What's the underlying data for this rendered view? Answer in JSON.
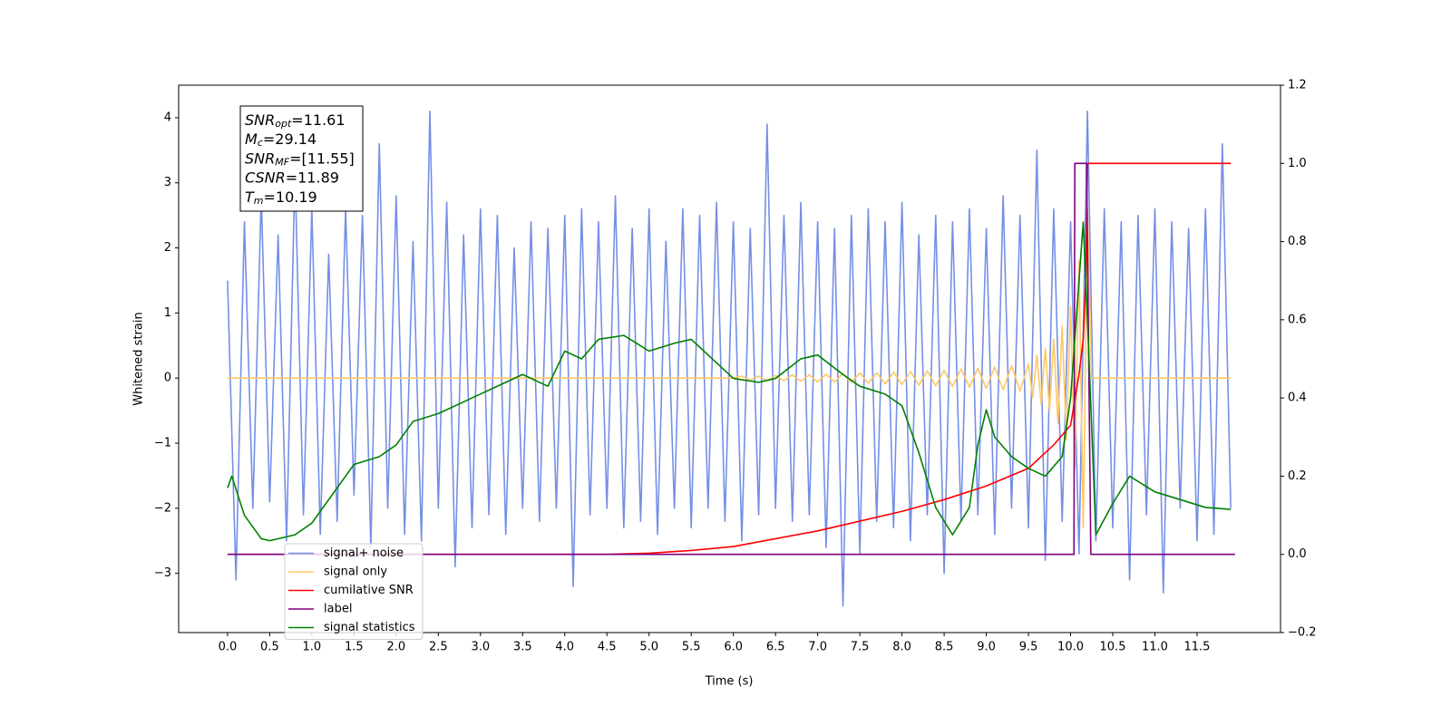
{
  "chart_data": {
    "type": "line",
    "xlabel": "Time (s)",
    "ylabel": "Whitened strain",
    "xlim": [
      -0.58,
      12.49
    ],
    "ylim": [
      -3.91,
      4.5
    ],
    "y2lim": [
      -0.2,
      1.2
    ],
    "xticks": [
      {
        "value": 0,
        "label": "0.0"
      },
      0.5,
      {
        "value": 1,
        "label": "1.0"
      },
      1.5,
      {
        "value": 2,
        "label": "2.0"
      },
      2.5,
      {
        "value": 3,
        "label": "3.0"
      },
      3.5,
      {
        "value": 4,
        "label": "4.0"
      },
      4.5,
      {
        "value": 5,
        "label": "5.0"
      },
      5.5,
      {
        "value": 6,
        "label": "6.0"
      },
      6.5,
      {
        "value": 7,
        "label": "7.0"
      },
      7.5,
      {
        "value": 8,
        "label": "8.0"
      },
      8.5,
      {
        "value": 9,
        "label": "9.0"
      },
      9.5,
      {
        "value": 10,
        "label": "10.0"
      },
      10.5,
      {
        "value": 11,
        "label": "11.0"
      },
      11.5
    ],
    "yticks": [
      {
        "value": -3,
        "label": "−3"
      },
      {
        "value": -2,
        "label": "−2"
      },
      {
        "value": -1,
        "label": "−1"
      },
      0,
      1,
      2,
      3,
      4
    ],
    "y2ticks": [
      {
        "value": -0.2,
        "label": "−0.2"
      },
      {
        "value": 0,
        "label": "0.0"
      },
      0.2,
      0.4,
      0.6,
      0.8,
      {
        "value": 1,
        "label": "1.0"
      },
      1.2
    ],
    "annotation_lines": [
      {
        "main": "SNR",
        "sub": "opt",
        "rest": "=11.61"
      },
      {
        "main": "M",
        "sub": "c",
        "rest": "=29.14"
      },
      {
        "main": "SNR",
        "sub": "MF",
        "rest": "=[11.55]"
      },
      {
        "main": "CSNR",
        "rest": "=11.89"
      },
      {
        "main": "T",
        "sub": "m",
        "rest": "=10.19"
      }
    ],
    "series": [
      {
        "name": "signal+ noise",
        "color": "#758fe6",
        "x": [
          0.0,
          0.1,
          0.2,
          0.3,
          0.4,
          0.5,
          0.6,
          0.7,
          0.8,
          0.9,
          1.0,
          1.1,
          1.2,
          1.3,
          1.4,
          1.5,
          1.6,
          1.7,
          1.8,
          1.9,
          2.0,
          2.1,
          2.2,
          2.3,
          2.4,
          2.5,
          2.6,
          2.7,
          2.8,
          2.9,
          3.0,
          3.1,
          3.2,
          3.3,
          3.4,
          3.5,
          3.6,
          3.7,
          3.8,
          3.9,
          4.0,
          4.1,
          4.2,
          4.3,
          4.4,
          4.5,
          4.6,
          4.7,
          4.8,
          4.9,
          5.0,
          5.1,
          5.2,
          5.3,
          5.4,
          5.5,
          5.6,
          5.7,
          5.8,
          5.9,
          6.0,
          6.1,
          6.2,
          6.3,
          6.4,
          6.5,
          6.6,
          6.7,
          6.8,
          6.9,
          7.0,
          7.1,
          7.2,
          7.3,
          7.4,
          7.5,
          7.6,
          7.7,
          7.8,
          7.9,
          8.0,
          8.1,
          8.2,
          8.3,
          8.4,
          8.5,
          8.6,
          8.7,
          8.8,
          8.9,
          9.0,
          9.1,
          9.2,
          9.3,
          9.4,
          9.5,
          9.6,
          9.7,
          9.8,
          9.9,
          10.0,
          10.1,
          10.2,
          10.3,
          10.4,
          10.5,
          10.6,
          10.7,
          10.8,
          10.9,
          11.0,
          11.1,
          11.2,
          11.3,
          11.4,
          11.5,
          11.6,
          11.7,
          11.8,
          11.9
        ],
        "values": [
          1.5,
          -3.1,
          2.4,
          -2.0,
          2.8,
          -1.9,
          2.2,
          -2.5,
          3.2,
          -2.1,
          2.6,
          -2.4,
          1.9,
          -2.2,
          2.6,
          -1.8,
          2.5,
          -2.6,
          3.6,
          -2.0,
          2.8,
          -2.4,
          2.1,
          -2.5,
          4.1,
          -2.0,
          2.7,
          -2.9,
          2.2,
          -2.3,
          2.6,
          -2.1,
          2.5,
          -2.4,
          2.0,
          -2.0,
          2.4,
          -2.2,
          2.3,
          -2.0,
          2.5,
          -3.2,
          2.6,
          -2.1,
          2.4,
          -2.0,
          2.8,
          -2.3,
          2.3,
          -2.2,
          2.6,
          -2.4,
          2.1,
          -2.0,
          2.6,
          -2.3,
          2.5,
          -2.0,
          2.7,
          -2.2,
          2.4,
          -2.5,
          2.3,
          -2.1,
          3.9,
          -2.0,
          2.5,
          -2.2,
          2.7,
          -2.1,
          2.4,
          -2.6,
          2.3,
          -3.5,
          2.5,
          -2.7,
          2.6,
          -2.2,
          2.4,
          -2.3,
          2.7,
          -2.5,
          2.2,
          -2.1,
          2.5,
          -3.0,
          2.4,
          -2.2,
          2.6,
          -2.1,
          2.3,
          -2.4,
          2.8,
          -2.0,
          2.5,
          -2.3,
          3.5,
          -2.8,
          2.6,
          -2.2,
          2.4,
          -2.7,
          4.1,
          -2.5,
          2.6,
          -2.3,
          2.4,
          -3.1,
          2.5,
          -2.1,
          2.6,
          -3.3,
          2.4,
          -2.0,
          2.3,
          -2.5,
          2.6,
          -2.4,
          3.6,
          -2.0
        ]
      },
      {
        "name": "signal only",
        "color": "#ffc766",
        "x": [
          0,
          6.0,
          6.1,
          6.2,
          6.3,
          6.4,
          6.5,
          6.6,
          6.7,
          6.8,
          6.9,
          7.0,
          7.1,
          7.2,
          7.3,
          7.4,
          7.5,
          7.6,
          7.7,
          7.8,
          7.9,
          8.0,
          8.1,
          8.2,
          8.3,
          8.4,
          8.5,
          8.6,
          8.7,
          8.8,
          8.9,
          9.0,
          9.1,
          9.2,
          9.3,
          9.4,
          9.5,
          9.55,
          9.6,
          9.65,
          9.7,
          9.75,
          9.8,
          9.85,
          9.9,
          9.95,
          10.0,
          10.05,
          10.1,
          10.15,
          10.2,
          10.25,
          11.9
        ],
        "values": [
          0,
          0,
          0.03,
          -0.03,
          0.03,
          -0.04,
          0.04,
          -0.04,
          0.05,
          -0.05,
          0.05,
          -0.06,
          0.06,
          -0.06,
          0.07,
          -0.07,
          0.08,
          -0.08,
          0.08,
          -0.09,
          0.09,
          -0.1,
          0.1,
          -0.11,
          0.11,
          -0.12,
          0.12,
          -0.13,
          0.14,
          -0.14,
          0.15,
          -0.16,
          0.17,
          -0.18,
          0.19,
          -0.2,
          0.22,
          -0.3,
          0.35,
          -0.4,
          0.45,
          -0.5,
          0.6,
          -0.7,
          0.8,
          -0.95,
          1.1,
          -1.4,
          1.8,
          -2.3,
          2.6,
          0,
          0
        ]
      },
      {
        "name": "cumilative SNR",
        "color": "#ff0000",
        "axis": "y2",
        "x": [
          0,
          4.5,
          5.0,
          5.5,
          6.0,
          6.5,
          7.0,
          7.5,
          8.0,
          8.5,
          9.0,
          9.5,
          9.8,
          10.0,
          10.1,
          10.15,
          10.18,
          10.2,
          11.9
        ],
        "values": [
          0,
          0,
          0.003,
          0.01,
          0.02,
          0.04,
          0.06,
          0.085,
          0.11,
          0.14,
          0.175,
          0.22,
          0.28,
          0.33,
          0.46,
          0.55,
          0.7,
          1.0,
          1.0
        ]
      },
      {
        "name": "label",
        "color": "#800080",
        "axis": "y2",
        "x": [
          0,
          10.04,
          10.05,
          10.19,
          10.24,
          11.95
        ],
        "values": [
          0,
          0,
          1.0,
          1.0,
          0,
          0
        ]
      },
      {
        "name": "signal statistics",
        "color": "#008000",
        "axis": "y2",
        "x": [
          0,
          0.05,
          0.2,
          0.4,
          0.5,
          0.8,
          1.0,
          1.2,
          1.5,
          1.8,
          2.0,
          2.2,
          2.5,
          2.8,
          3.0,
          3.3,
          3.5,
          3.8,
          4.0,
          4.2,
          4.4,
          4.7,
          5.0,
          5.3,
          5.5,
          5.8,
          6.0,
          6.3,
          6.5,
          6.8,
          7.0,
          7.3,
          7.5,
          7.8,
          8.0,
          8.2,
          8.4,
          8.6,
          8.8,
          8.9,
          9.0,
          9.1,
          9.3,
          9.5,
          9.7,
          9.9,
          10.0,
          10.1,
          10.15,
          10.2,
          10.3,
          10.5,
          10.7,
          11.0,
          11.3,
          11.6,
          11.9
        ],
        "values": [
          0.17,
          0.2,
          0.1,
          0.04,
          0.035,
          0.05,
          0.08,
          0.14,
          0.23,
          0.25,
          0.28,
          0.34,
          0.36,
          0.39,
          0.41,
          0.44,
          0.46,
          0.43,
          0.52,
          0.5,
          0.55,
          0.56,
          0.52,
          0.54,
          0.55,
          0.49,
          0.45,
          0.44,
          0.45,
          0.5,
          0.51,
          0.46,
          0.43,
          0.41,
          0.38,
          0.26,
          0.12,
          0.05,
          0.12,
          0.28,
          0.37,
          0.3,
          0.25,
          0.22,
          0.2,
          0.25,
          0.4,
          0.7,
          0.85,
          0.6,
          0.05,
          0.13,
          0.2,
          0.16,
          0.14,
          0.12,
          0.115
        ]
      }
    ]
  }
}
